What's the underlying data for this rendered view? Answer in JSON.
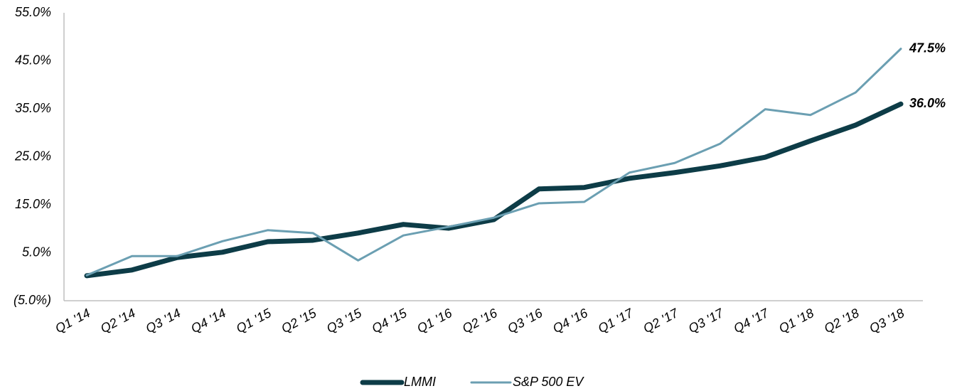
{
  "chart_data": {
    "type": "line",
    "categories": [
      "Q1 '14",
      "Q2 '14",
      "Q3 '14",
      "Q4 '14",
      "Q1 '15",
      "Q2 '15",
      "Q3 '15",
      "Q4 '15",
      "Q1 '16",
      "Q2 '16",
      "Q3 '16",
      "Q4 '16",
      "Q1 '17",
      "Q2 '17",
      "Q3 '17",
      "Q4 '17",
      "Q1 '18",
      "Q2 '18",
      "Q3 '18"
    ],
    "series": [
      {
        "name": "LMMI",
        "color": "#0d3c47",
        "width": 7,
        "values": [
          0.2,
          1.4,
          4.0,
          5.1,
          7.3,
          7.6,
          9.1,
          10.9,
          10.1,
          11.9,
          18.3,
          18.6,
          20.5,
          21.7,
          23.1,
          24.9,
          28.3,
          31.6,
          36.0
        ],
        "value_labels": [
          null,
          null,
          null,
          null,
          null,
          null,
          null,
          null,
          null,
          null,
          null,
          null,
          null,
          null,
          null,
          null,
          null,
          null,
          "36.0%"
        ]
      },
      {
        "name": "S&P 500 EV",
        "color": "#6b9fb2",
        "width": 3,
        "values": [
          0.3,
          4.3,
          4.3,
          7.4,
          9.7,
          9.1,
          3.4,
          8.6,
          10.4,
          12.3,
          15.3,
          15.6,
          21.7,
          23.7,
          27.7,
          34.9,
          33.7,
          38.4,
          47.5
        ],
        "value_labels": [
          null,
          null,
          null,
          null,
          null,
          null,
          null,
          null,
          null,
          null,
          null,
          null,
          null,
          null,
          null,
          null,
          null,
          null,
          "47.5%"
        ]
      }
    ],
    "ylim": [
      -5,
      55
    ],
    "yticks": [
      {
        "value": -5,
        "label": "(5.0%)"
      },
      {
        "value": 5,
        "label": "5.0%"
      },
      {
        "value": 15,
        "label": "15.0%"
      },
      {
        "value": 25,
        "label": "25.0%"
      },
      {
        "value": 35,
        "label": "35.0%"
      },
      {
        "value": 45,
        "label": "45.0%"
      },
      {
        "value": 55,
        "label": "55.0%"
      }
    ],
    "grid": false,
    "legend": "bottom"
  }
}
